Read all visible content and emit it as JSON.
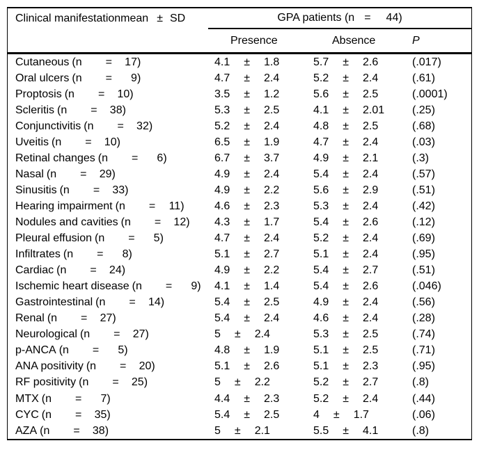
{
  "table": {
    "header": {
      "col1_title": "Clinical manifestationmean",
      "col1_pm": "±",
      "col1_sd": "SD",
      "gpa_pre": "GPA patients (n",
      "gpa_n": "44",
      "presence": "Presence",
      "absence": "Absence",
      "p": "P"
    },
    "label_tokens": {
      "n_open": "(n",
      "eq": "=",
      "close": ")"
    },
    "pm": "±",
    "rows": [
      {
        "label": "Cutaneous",
        "n": "17",
        "presence_mean": "4.1",
        "presence_sd": "1.8",
        "absence_mean": "5.7",
        "absence_sd": "2.6",
        "p": "(.017)"
      },
      {
        "label": "Oral ulcers",
        "n": "9",
        "presence_mean": "4.7",
        "presence_sd": "2.4",
        "absence_mean": "5.2",
        "absence_sd": "2.4",
        "p": "(.61)"
      },
      {
        "label": "Proptosis",
        "n": "10",
        "presence_mean": "3.5",
        "presence_sd": "1.2",
        "absence_mean": "5.6",
        "absence_sd": "2.5",
        "p": "(.0001)"
      },
      {
        "label": "Scleritis",
        "n": "38",
        "presence_mean": "5.3",
        "presence_sd": "2.5",
        "absence_mean": "4.1",
        "absence_sd": "2.01",
        "p": "(.25)"
      },
      {
        "label": "Conjunctivitis",
        "n": "32",
        "presence_mean": "5.2",
        "presence_sd": "2.4",
        "absence_mean": "4.8",
        "absence_sd": "2.5",
        "p": "(.68)"
      },
      {
        "label": "Uveitis",
        "n": "10",
        "presence_mean": "6.5",
        "presence_sd": "1.9",
        "absence_mean": "4.7",
        "absence_sd": "2.4",
        "p": "(.03)"
      },
      {
        "label": "Retinal changes",
        "n": "6",
        "presence_mean": "6.7",
        "presence_sd": "3.7",
        "absence_mean": "4.9",
        "absence_sd": "2.1",
        "p": "(.3)"
      },
      {
        "label": "Nasal",
        "n": "29",
        "presence_mean": "4.9",
        "presence_sd": "2.4",
        "absence_mean": "5.4",
        "absence_sd": "2.4",
        "p": "(.57)"
      },
      {
        "label": "Sinusitis",
        "n": "33",
        "presence_mean": "4.9",
        "presence_sd": "2.2",
        "absence_mean": "5.6",
        "absence_sd": "2.9",
        "p": "(.51)"
      },
      {
        "label": "Hearing impairment",
        "n": "11",
        "presence_mean": "4.6",
        "presence_sd": "2.3",
        "absence_mean": "5.3",
        "absence_sd": "2.4",
        "p": "(.42)"
      },
      {
        "label": "Nodules and cavities",
        "n": "12",
        "presence_mean": "4.3",
        "presence_sd": "1.7",
        "absence_mean": "5.4",
        "absence_sd": "2.6",
        "p": "(.12)"
      },
      {
        "label": "Pleural effusion",
        "n": "5",
        "presence_mean": "4.7",
        "presence_sd": "2.4",
        "absence_mean": "5.2",
        "absence_sd": "2.4",
        "p": "(.69)"
      },
      {
        "label": "Infiltrates",
        "n": "8",
        "presence_mean": "5.1",
        "presence_sd": "2.7",
        "absence_mean": "5.1",
        "absence_sd": "2.4",
        "p": "(.95)"
      },
      {
        "label": "Cardiac",
        "n": "24",
        "presence_mean": "4.9",
        "presence_sd": "2.2",
        "absence_mean": "5.4",
        "absence_sd": "2.7",
        "p": "(.51)"
      },
      {
        "label": "Ischemic heart disease",
        "n": "9",
        "presence_mean": "4.1",
        "presence_sd": "1.4",
        "absence_mean": "5.4",
        "absence_sd": "2.6",
        "p": "(.046)"
      },
      {
        "label": "Gastrointestinal",
        "n": "14",
        "presence_mean": "5.4",
        "presence_sd": "2.5",
        "absence_mean": "4.9",
        "absence_sd": "2.4",
        "p": "(.56)"
      },
      {
        "label": "Renal",
        "n": "27",
        "presence_mean": "5.4",
        "presence_sd": "2.4",
        "absence_mean": "4.6",
        "absence_sd": "2.4",
        "p": "(.28)"
      },
      {
        "label": "Neurological",
        "n": "27",
        "presence_mean": "5",
        "presence_sd": "2.4",
        "absence_mean": "5.3",
        "absence_sd": "2.5",
        "p": "(.74)"
      },
      {
        "label": "p-ANCA",
        "n": "5",
        "presence_mean": "4.8",
        "presence_sd": "1.9",
        "absence_mean": "5.1",
        "absence_sd": "2.5",
        "p": "(.71)"
      },
      {
        "label": "ANA positivity",
        "n": "20",
        "presence_mean": "5.1",
        "presence_sd": "2.6",
        "absence_mean": "5.1",
        "absence_sd": "2.3",
        "p": "(.95)"
      },
      {
        "label": "RF positivity",
        "n": "25",
        "presence_mean": "5",
        "presence_sd": "2.2",
        "absence_mean": "5.2",
        "absence_sd": "2.7",
        "p": "(.8)"
      },
      {
        "label": "MTX",
        "n": "7",
        "presence_mean": "4.4",
        "presence_sd": "2.3",
        "absence_mean": "5.2",
        "absence_sd": "2.4",
        "p": "(.44)"
      },
      {
        "label": "CYC",
        "n": "35",
        "presence_mean": "5.4",
        "presence_sd": "2.5",
        "absence_mean": "4",
        "absence_sd": "1.7",
        "p": "(.06)"
      },
      {
        "label": "AZA",
        "n": "38",
        "presence_mean": "5",
        "presence_sd": "2.1",
        "absence_mean": "5.5",
        "absence_sd": "4.1",
        "p": "(.8)"
      }
    ]
  }
}
